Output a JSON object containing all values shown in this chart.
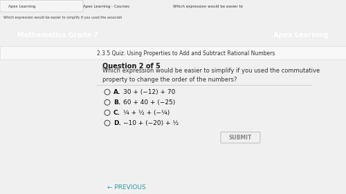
{
  "browser_tab_text": "Which expression would be easier to simplif...",
  "url_bar_text": "Which expression would be easier to simplify if you used the associative property to change the grouping?",
  "nav_bar_color": "#2d9c9c",
  "nav_bar_text": "Mathematics Grade 7",
  "nav_bar_right": "Apex Learning",
  "page_bg": "#f0f0f0",
  "content_bg": "#ffffff",
  "breadcrumb": "2.3.5 Quiz: Using Properties to Add and Subtract Rational Numbers",
  "question_label": "Question 2 of 5",
  "question_text": "Which expression would be easier to simplify if you used the commutative\nproperty to change the order of the numbers?",
  "options": [
    {
      "label": "A.",
      "expr": "30 + (−12) + 70"
    },
    {
      "label": "B.",
      "expr": "60 + 40 + (−25)"
    },
    {
      "label": "C.",
      "expr": "¼ + ½ + (−¼)"
    },
    {
      "label": "D.",
      "expr": "−10 + (−20) + ½"
    }
  ],
  "submit_btn_text": "SUBMIT",
  "prev_btn_text": "← PREVIOUS",
  "label_color": "#1a1a1a",
  "option_label_bold_color": "#333333",
  "circle_color": "#555555",
  "line_color": "#cccccc"
}
